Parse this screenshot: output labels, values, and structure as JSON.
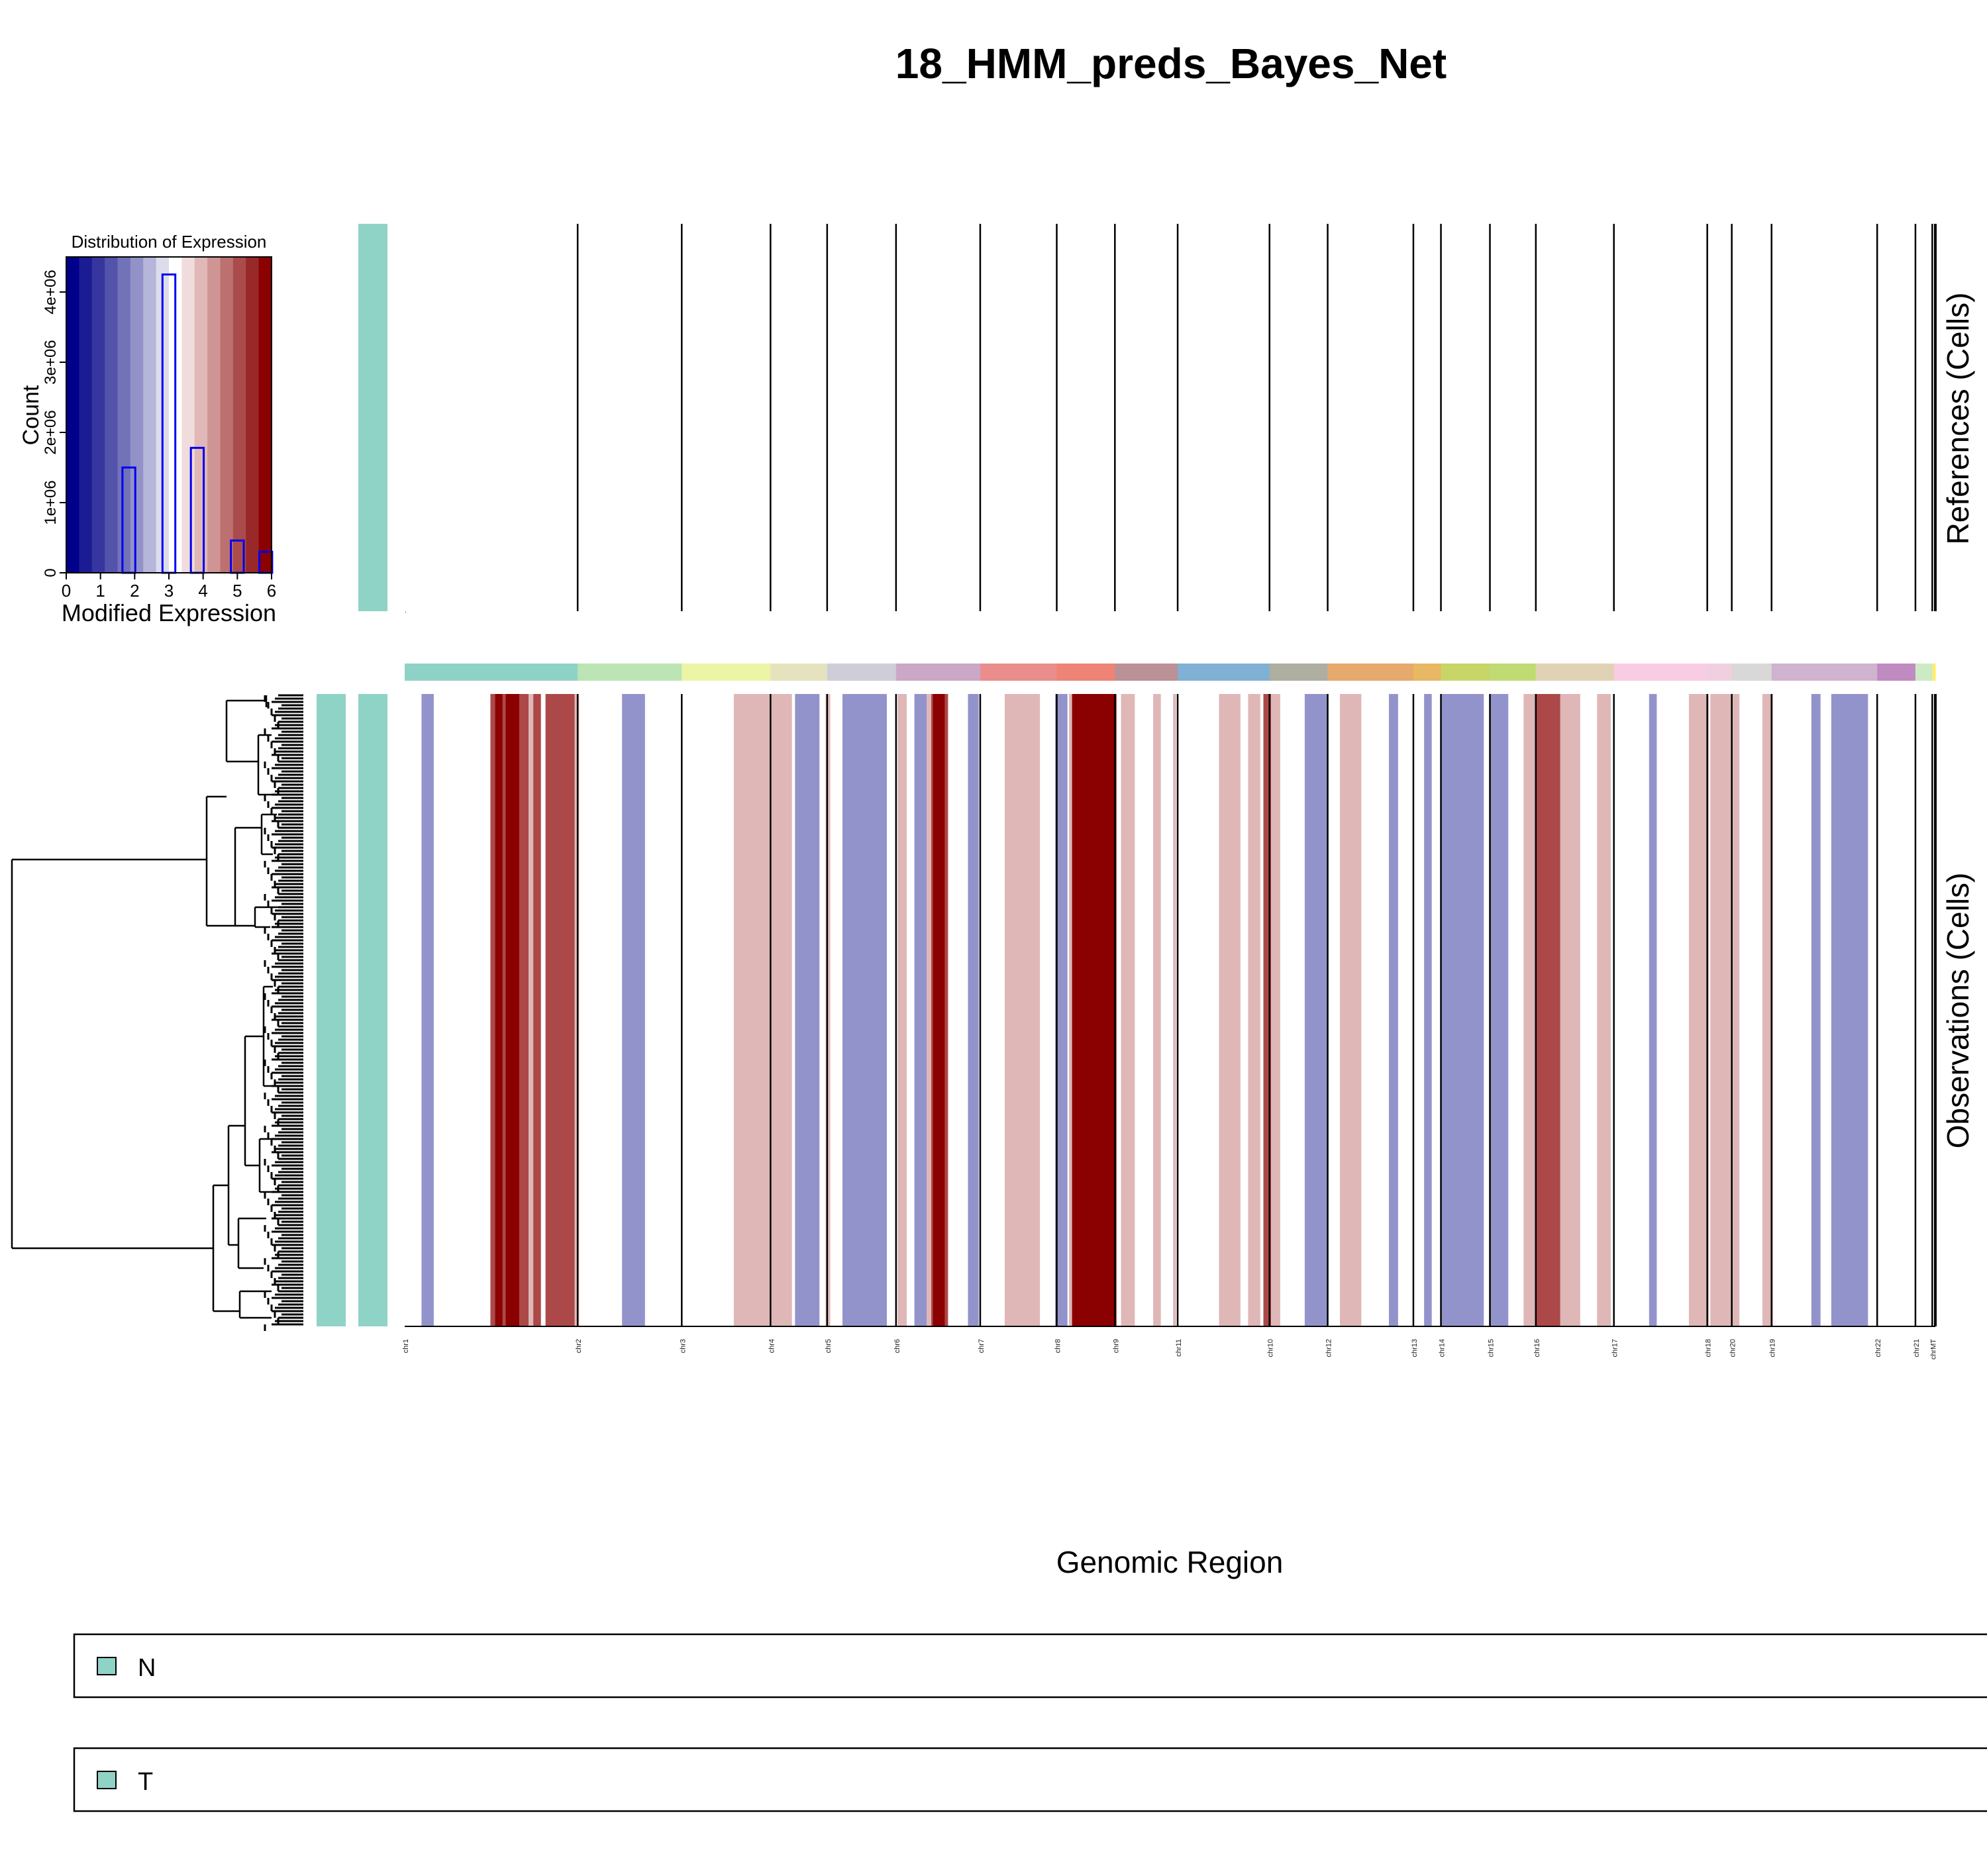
{
  "title": "18_HMM_preds_Bayes_Net",
  "xlabel": "Genomic Region",
  "ref_label": "References (Cells)",
  "obs_label": "Observations (Cells)",
  "legend": [
    {
      "label": "N",
      "color": "#8fd3c7"
    },
    {
      "label": "T",
      "color": "#8fd3c7"
    }
  ],
  "chart_data": [
    {
      "type": "bar",
      "title": "Distribution of Expression",
      "xlabel": "Modified Expression",
      "ylabel": "Count",
      "xlim": [
        0,
        6
      ],
      "ylim": [
        0,
        4500000
      ],
      "x_ticks": [
        "0",
        "1",
        "2",
        "3",
        "4",
        "5",
        "6"
      ],
      "y_ticks": [
        "0",
        "1e+06",
        "2e+06",
        "3e+06",
        "4e+06"
      ],
      "color_scale": [
        "#00008b",
        "#1b1b94",
        "#36369e",
        "#5353ab",
        "#7272b9",
        "#9292c8",
        "#b6b6da",
        "#dcdcec",
        "#ffffff",
        "#f0dcdc",
        "#e0b8b8",
        "#cf9494",
        "#bd7070",
        "#aa4c4c",
        "#992828",
        "#8b0000"
      ],
      "bars": [
        {
          "x": 1.83,
          "count": 1500000
        },
        {
          "x": 3.0,
          "count": 4250000
        },
        {
          "x": 3.83,
          "count": 1780000
        },
        {
          "x": 5.0,
          "count": 460000
        },
        {
          "x": 5.83,
          "count": 300000
        }
      ]
    },
    {
      "type": "heatmap",
      "chromosomes": [
        {
          "name": "chr1",
          "start": 0,
          "end": 0.113,
          "color": "#8fd3c7"
        },
        {
          "name": "chr2",
          "start": 0.113,
          "end": 0.181,
          "color": "#bde4b4"
        },
        {
          "name": "chr3",
          "start": 0.181,
          "end": 0.239,
          "color": "#ecf5a6"
        },
        {
          "name": "chr4",
          "start": 0.239,
          "end": 0.276,
          "color": "#e5e3bd"
        },
        {
          "name": "chr5",
          "start": 0.276,
          "end": 0.321,
          "color": "#cfcdd8"
        },
        {
          "name": "chr6",
          "start": 0.321,
          "end": 0.376,
          "color": "#cba8c7"
        },
        {
          "name": "chr7",
          "start": 0.376,
          "end": 0.426,
          "color": "#e98e8d"
        },
        {
          "name": "chr8",
          "start": 0.426,
          "end": 0.464,
          "color": "#ee8476"
        },
        {
          "name": "chr9",
          "start": 0.464,
          "end": 0.505,
          "color": "#b99197"
        },
        {
          "name": "chr11",
          "start": 0.505,
          "end": 0.565,
          "color": "#80b0d4"
        },
        {
          "name": "chr10",
          "start": 0.565,
          "end": 0.603,
          "color": "#aeaea1"
        },
        {
          "name": "chr12",
          "start": 0.603,
          "end": 0.659,
          "color": "#e5aa6c"
        },
        {
          "name": "chr13",
          "start": 0.659,
          "end": 0.677,
          "color": "#e8b864"
        },
        {
          "name": "chr14",
          "start": 0.677,
          "end": 0.709,
          "color": "#c8d567"
        },
        {
          "name": "chr15",
          "start": 0.709,
          "end": 0.739,
          "color": "#c0db74"
        },
        {
          "name": "chr16",
          "start": 0.739,
          "end": 0.79,
          "color": "#e0d3b5"
        },
        {
          "name": "chr17",
          "start": 0.79,
          "end": 0.851,
          "color": "#f8cce3"
        },
        {
          "name": "chr18",
          "start": 0.851,
          "end": 0.867,
          "color": "#f0d0e0"
        },
        {
          "name": "chr20",
          "start": 0.867,
          "end": 0.893,
          "color": "#d8d8d8"
        },
        {
          "name": "chr19",
          "start": 0.893,
          "end": 0.962,
          "color": "#d0b3cf"
        },
        {
          "name": "chr22",
          "start": 0.962,
          "end": 0.987,
          "color": "#c08bc0"
        },
        {
          "name": "chr21",
          "start": 0.987,
          "end": 0.998,
          "color": "#ccebc5"
        },
        {
          "name": "chrMT",
          "start": 0.998,
          "end": 1,
          "color": "#ffed6f"
        }
      ],
      "observation_segments": [
        {
          "start": 0.011,
          "end": 0.019,
          "state": "loss"
        },
        {
          "start": 0.056,
          "end": 0.059,
          "state": "gain_mod"
        },
        {
          "start": 0.059,
          "end": 0.064,
          "state": "gain_high"
        },
        {
          "start": 0.064,
          "end": 0.068,
          "state": "gain_mod"
        },
        {
          "start": 0.066,
          "end": 0.075,
          "state": "gain_high"
        },
        {
          "start": 0.075,
          "end": 0.081,
          "state": "gain_mod"
        },
        {
          "start": 0.081,
          "end": 0.084,
          "state": "gain_low"
        },
        {
          "start": 0.084,
          "end": 0.089,
          "state": "gain_mod"
        },
        {
          "start": 0.092,
          "end": 0.111,
          "state": "gain_mod"
        },
        {
          "start": 0.111,
          "end": 0.114,
          "state": "gain_low"
        },
        {
          "start": 0.142,
          "end": 0.157,
          "state": "loss"
        },
        {
          "start": 0.215,
          "end": 0.253,
          "state": "gain_low"
        },
        {
          "start": 0.255,
          "end": 0.271,
          "state": "loss"
        },
        {
          "start": 0.275,
          "end": 0.278,
          "state": "gain_low"
        },
        {
          "start": 0.286,
          "end": 0.315,
          "state": "loss"
        },
        {
          "start": 0.322,
          "end": 0.328,
          "state": "gain_low"
        },
        {
          "start": 0.333,
          "end": 0.341,
          "state": "loss"
        },
        {
          "start": 0.341,
          "end": 0.344,
          "state": "gain_low"
        },
        {
          "start": 0.344,
          "end": 0.345,
          "state": "gain_mod"
        },
        {
          "start": 0.345,
          "end": 0.353,
          "state": "gain_high"
        },
        {
          "start": 0.353,
          "end": 0.355,
          "state": "gain_mod"
        },
        {
          "start": 0.368,
          "end": 0.375,
          "state": "loss"
        },
        {
          "start": 0.392,
          "end": 0.415,
          "state": "gain_low"
        },
        {
          "start": 0.425,
          "end": 0.433,
          "state": "loss"
        },
        {
          "start": 0.434,
          "end": 0.436,
          "state": "gain_low"
        },
        {
          "start": 0.436,
          "end": 0.465,
          "state": "gain_high"
        },
        {
          "start": 0.468,
          "end": 0.477,
          "state": "gain_low"
        },
        {
          "start": 0.489,
          "end": 0.494,
          "state": "gain_low"
        },
        {
          "start": 0.502,
          "end": 0.504,
          "state": "gain_low"
        },
        {
          "start": 0.532,
          "end": 0.546,
          "state": "gain_low"
        },
        {
          "start": 0.551,
          "end": 0.559,
          "state": "gain_low"
        },
        {
          "start": 0.561,
          "end": 0.566,
          "state": "gain_mod"
        },
        {
          "start": 0.566,
          "end": 0.572,
          "state": "gain_low"
        },
        {
          "start": 0.588,
          "end": 0.603,
          "state": "loss"
        },
        {
          "start": 0.611,
          "end": 0.625,
          "state": "gain_low"
        },
        {
          "start": 0.643,
          "end": 0.649,
          "state": "loss"
        },
        {
          "start": 0.666,
          "end": 0.671,
          "state": "loss"
        },
        {
          "start": 0.677,
          "end": 0.705,
          "state": "loss"
        },
        {
          "start": 0.709,
          "end": 0.721,
          "state": "loss"
        },
        {
          "start": 0.731,
          "end": 0.739,
          "state": "gain_low"
        },
        {
          "start": 0.739,
          "end": 0.755,
          "state": "gain_mod"
        },
        {
          "start": 0.755,
          "end": 0.768,
          "state": "gain_low"
        },
        {
          "start": 0.779,
          "end": 0.788,
          "state": "gain_low"
        },
        {
          "start": 0.813,
          "end": 0.818,
          "state": "loss"
        },
        {
          "start": 0.839,
          "end": 0.852,
          "state": "gain_low"
        },
        {
          "start": 0.853,
          "end": 0.866,
          "state": "gain_low"
        },
        {
          "start": 0.866,
          "end": 0.872,
          "state": "gain_low"
        },
        {
          "start": 0.887,
          "end": 0.894,
          "state": "gain_low"
        },
        {
          "start": 0.919,
          "end": 0.925,
          "state": "loss"
        },
        {
          "start": 0.932,
          "end": 0.956,
          "state": "loss"
        }
      ]
    }
  ],
  "state_colors": {
    "loss": "#9393cc",
    "gain_low": "#dfb7b7",
    "gain_mod": "#ac4848",
    "gain_high": "#8b0000"
  },
  "track_color": "#8fd3c7"
}
